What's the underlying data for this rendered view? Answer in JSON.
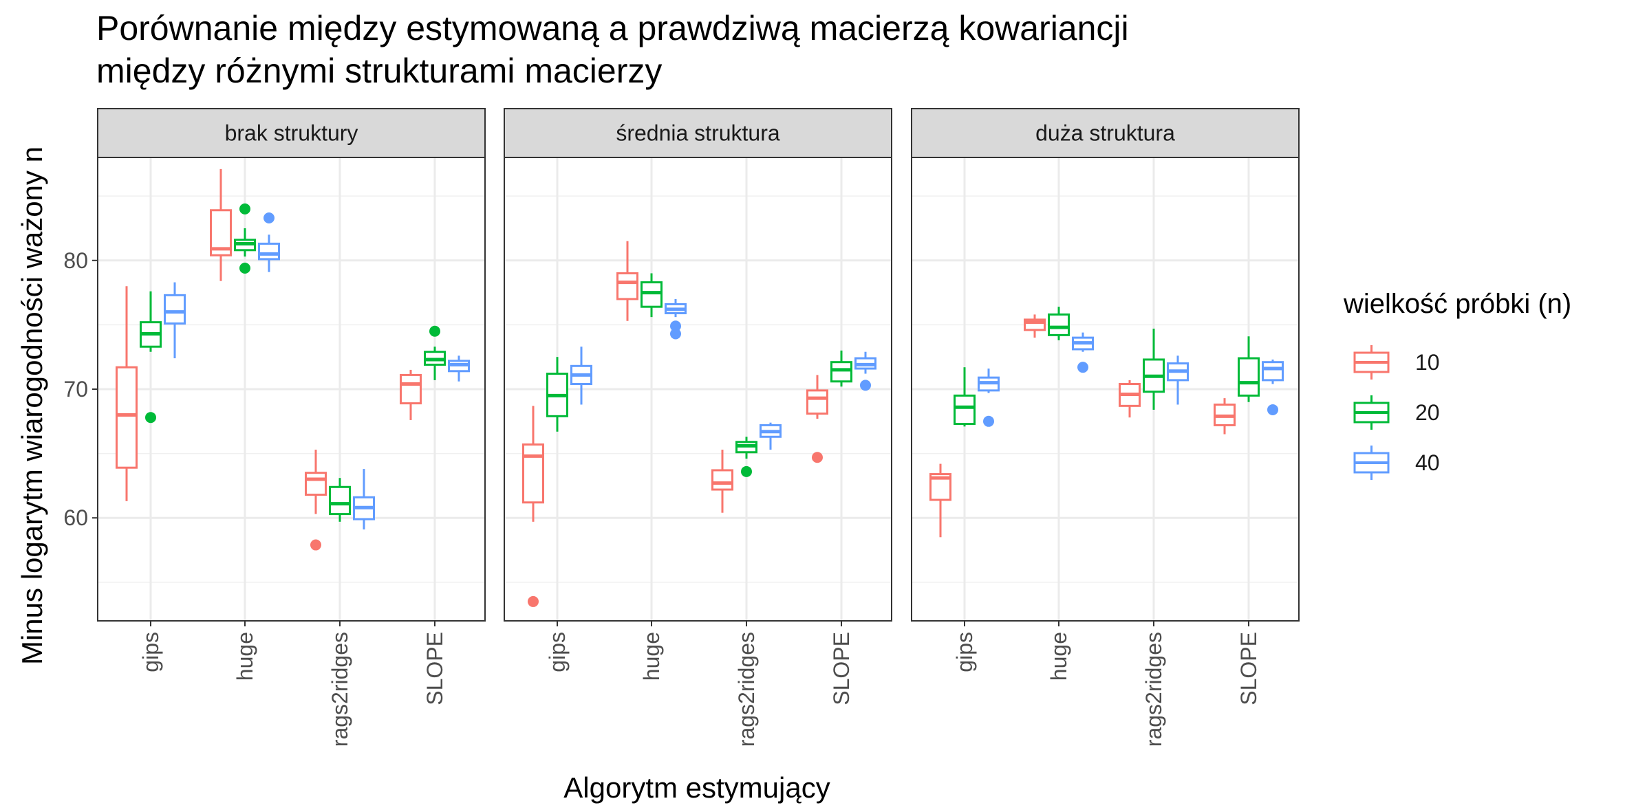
{
  "chart_data": {
    "type": "boxplot",
    "title_lines": [
      "Porównanie między estymowaną a prawdziwą macierzą kowariancji",
      "między różnymi strukturami macierzy"
    ],
    "xlabel": "Algorytm estymujący",
    "ylabel": "Minus logarytm wiarogodności ważony n",
    "ylim": [
      52,
      88
    ],
    "yticks": [
      60,
      70,
      80
    ],
    "grid": true,
    "legend": {
      "title": "wielkość próbki (n)",
      "position": "right",
      "entries": [
        {
          "label": "10",
          "color": "#F8766D"
        },
        {
          "label": "20",
          "color": "#00BA38"
        },
        {
          "label": "40",
          "color": "#619CFF"
        }
      ]
    },
    "categories": [
      "gips",
      "huge",
      "rags2ridges",
      "SLOPE"
    ],
    "panels": [
      {
        "label": "brak struktury",
        "boxes": {
          "gips": [
            [
              61.3,
              63.9,
              68.0,
              71.7,
              78.0,
              []
            ],
            [
              72.9,
              73.3,
              74.3,
              75.2,
              77.6,
              [
                67.8
              ]
            ],
            [
              72.4,
              75.1,
              76.0,
              77.3,
              78.3,
              []
            ]
          ],
          "huge": [
            [
              78.4,
              80.4,
              80.9,
              83.9,
              87.1,
              []
            ],
            [
              80.3,
              80.8,
              81.3,
              81.6,
              82.5,
              [
                84.0,
                79.4
              ]
            ],
            [
              79.1,
              80.1,
              80.5,
              81.3,
              82.0,
              [
                83.3
              ]
            ]
          ],
          "rags2ridges": [
            [
              60.3,
              61.8,
              63.0,
              63.5,
              65.3,
              [
                57.9
              ]
            ],
            [
              59.7,
              60.3,
              61.1,
              62.4,
              63.1,
              []
            ],
            [
              59.1,
              59.9,
              60.8,
              61.6,
              63.8,
              []
            ]
          ],
          "SLOPE": [
            [
              67.6,
              68.9,
              70.4,
              71.1,
              71.5,
              []
            ],
            [
              70.7,
              71.9,
              72.3,
              72.9,
              73.3,
              [
                74.5
              ]
            ],
            [
              70.6,
              71.4,
              71.9,
              72.2,
              72.6,
              []
            ]
          ]
        }
      },
      {
        "label": "średnia struktura",
        "boxes": {
          "gips": [
            [
              59.7,
              61.2,
              64.8,
              65.7,
              68.7,
              [
                53.5
              ]
            ],
            [
              66.7,
              67.9,
              69.5,
              71.2,
              72.5,
              []
            ],
            [
              68.8,
              70.4,
              71.1,
              71.8,
              73.3,
              []
            ]
          ],
          "huge": [
            [
              75.3,
              77.0,
              78.3,
              79.0,
              81.5,
              []
            ],
            [
              75.6,
              76.4,
              77.5,
              78.3,
              79.0,
              []
            ],
            [
              75.6,
              75.9,
              76.2,
              76.6,
              77.0,
              [
                74.9,
                74.3
              ]
            ]
          ],
          "rags2ridges": [
            [
              60.4,
              62.2,
              62.7,
              63.7,
              65.3,
              []
            ],
            [
              64.6,
              65.1,
              65.6,
              65.9,
              66.3,
              [
                63.6
              ]
            ],
            [
              65.3,
              66.3,
              66.7,
              67.2,
              67.4,
              []
            ]
          ],
          "SLOPE": [
            [
              67.7,
              68.1,
              69.3,
              69.9,
              71.1,
              [
                64.7
              ]
            ],
            [
              70.2,
              70.6,
              71.5,
              72.1,
              73.0,
              []
            ],
            [
              71.2,
              71.6,
              71.9,
              72.4,
              72.9,
              [
                70.3
              ]
            ]
          ]
        }
      },
      {
        "label": "duża struktura",
        "boxes": {
          "gips": [
            [
              58.5,
              61.4,
              63.1,
              63.4,
              64.2,
              []
            ],
            [
              67.1,
              67.3,
              68.6,
              69.5,
              71.7,
              []
            ],
            [
              69.7,
              69.9,
              70.5,
              70.9,
              71.6,
              [
                67.5
              ]
            ]
          ],
          "huge": [
            [
              74.0,
              74.6,
              75.2,
              75.4,
              75.8,
              []
            ],
            [
              73.8,
              74.2,
              74.8,
              75.8,
              76.4,
              []
            ],
            [
              72.9,
              73.1,
              73.6,
              74.0,
              74.4,
              [
                71.7
              ]
            ]
          ],
          "rags2ridges": [
            [
              67.8,
              68.7,
              69.6,
              70.4,
              70.7,
              []
            ],
            [
              68.4,
              69.8,
              71.0,
              72.3,
              74.7,
              []
            ],
            [
              68.8,
              70.7,
              71.4,
              72.0,
              72.6,
              []
            ]
          ],
          "SLOPE": [
            [
              66.5,
              67.2,
              67.9,
              68.8,
              69.3,
              []
            ],
            [
              69.0,
              69.5,
              70.5,
              72.4,
              74.1,
              []
            ],
            [
              70.4,
              70.7,
              71.6,
              72.1,
              72.3,
              [
                68.4
              ]
            ]
          ]
        }
      }
    ]
  }
}
